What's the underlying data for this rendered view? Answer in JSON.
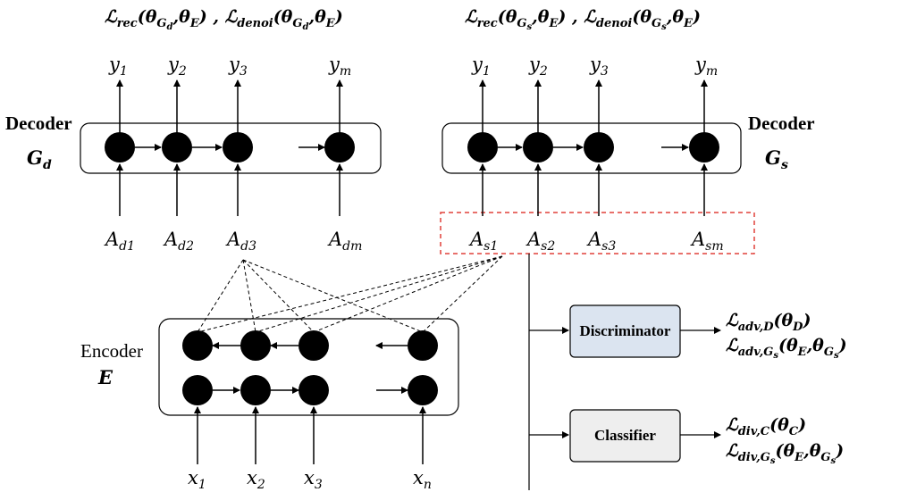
{
  "decoder_left": {
    "title": "Decoder",
    "symbol": "G",
    "symbol_sub": "d",
    "loss_text": "ℒrec(θGd,θE) , ℒdenoi(θGd,θE)",
    "outputs": [
      "y1",
      "y2",
      "y3",
      "ym"
    ],
    "inputs": [
      "Ad1",
      "Ad2",
      "Ad3",
      "Adm"
    ]
  },
  "decoder_right": {
    "title": "Decoder",
    "symbol": "G",
    "symbol_sub": "s",
    "loss_text": "ℒrec(θGs,θE) , ℒdenoi(θGs,θE)",
    "outputs": [
      "y1",
      "y2",
      "y3",
      "ym"
    ],
    "inputs": [
      "As1",
      "As2",
      "As3",
      "Asm"
    ]
  },
  "encoder": {
    "title": "Encoder",
    "symbol": "E",
    "inputs": [
      "x1",
      "x2",
      "x3",
      "xn"
    ]
  },
  "discriminator": {
    "label": "Discriminator",
    "fill": "#dbe4f0",
    "loss_1": "ℒadv,D(θD)",
    "loss_2": "ℒadv,Gs(θE,θGs)"
  },
  "classifier": {
    "label": "Classifier",
    "fill": "#eeeeee",
    "loss_1": "ℒdiv,C(θC)",
    "loss_2": "ℒdiv,Gs(θE,θGs)"
  },
  "colors": {
    "stroke": "#000000",
    "selection_box": "#e0403a"
  }
}
